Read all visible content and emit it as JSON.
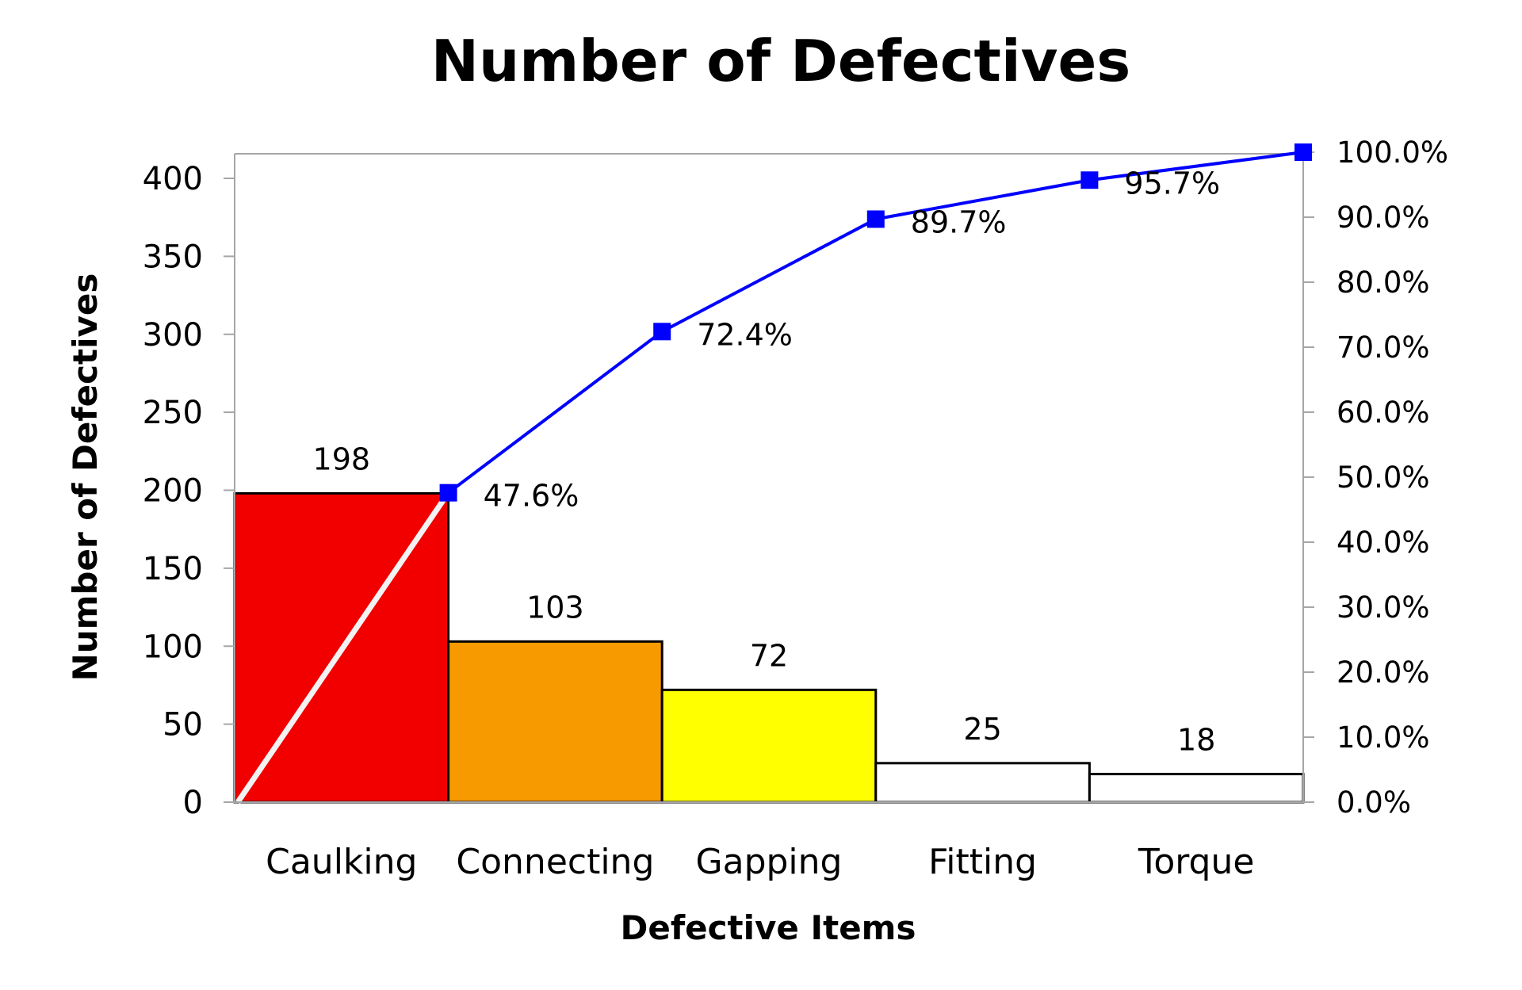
{
  "chart_data": {
    "type": "bar",
    "title": "Number of Defectives",
    "xlabel": "Defective Items",
    "ylabel": "Number of Defectives",
    "categories": [
      "Caulking",
      "Connecting",
      "Gapping",
      "Fitting",
      "Torque"
    ],
    "values": [
      198,
      103,
      72,
      25,
      18
    ],
    "bar_labels": [
      "198",
      "103",
      "72",
      "25",
      "18"
    ],
    "bar_colors": [
      "#f20000",
      "#f79a00",
      "#ffff00",
      "#ffffff",
      "#ffffff"
    ],
    "ylim": [
      0,
      400
    ],
    "yticks": [
      0,
      50,
      100,
      150,
      200,
      250,
      300,
      350,
      400
    ],
    "ytick_labels": [
      "0",
      "50",
      "100",
      "150",
      "200",
      "250",
      "300",
      "350",
      "400"
    ],
    "y2lim": [
      0,
      100
    ],
    "y2ticks": [
      0,
      10,
      20,
      30,
      40,
      50,
      60,
      70,
      80,
      90,
      100
    ],
    "y2tick_labels": [
      "0.0%",
      "10.0%",
      "20.0%",
      "30.0%",
      "40.0%",
      "50.0%",
      "60.0%",
      "70.0%",
      "80.0%",
      "90.0%",
      "100.0%"
    ],
    "cumulative_series": {
      "values": [
        47.6,
        72.4,
        89.7,
        95.7,
        100.0
      ],
      "labels": [
        "47.6%",
        "72.4%",
        "89.7%",
        "95.7%",
        ""
      ],
      "color": "#0000ff"
    },
    "diagonal_color": "#f2f2f2",
    "grid": false,
    "legend": "none"
  }
}
